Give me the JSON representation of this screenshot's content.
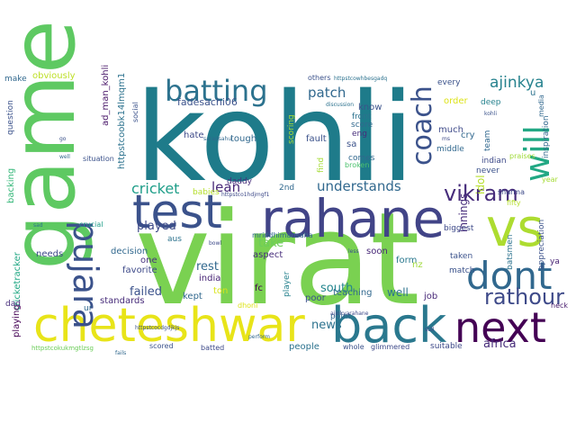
{
  "words": [
    {
      "text": "kohli",
      "color": "#1e7b8a"
    },
    {
      "text": "virat",
      "color": "#7ad151"
    },
    {
      "text": "game",
      "color": "#5ec962"
    },
    {
      "text": "rahane",
      "color": "#414487"
    },
    {
      "text": "test",
      "color": "#3b528b"
    },
    {
      "text": "vs",
      "color": "#addc30"
    },
    {
      "text": "cheteshwar",
      "color": "#e8e419"
    },
    {
      "text": "back",
      "color": "#2a788e"
    },
    {
      "text": "next",
      "color": "#440154"
    },
    {
      "text": "pujara",
      "color": "#3b528b"
    },
    {
      "text": "dont",
      "color": "#31688e"
    },
    {
      "text": "batting",
      "color": "#2c728e"
    },
    {
      "text": "coach",
      "color": "#3b528b"
    },
    {
      "text": "will",
      "color": "#22a884"
    },
    {
      "text": "rathour",
      "color": "#3e4a89"
    },
    {
      "text": "vikram",
      "color": "#472d7b"
    },
    {
      "text": "patch",
      "color": "#31688e"
    },
    {
      "text": "ajinkya",
      "color": "#26828e"
    },
    {
      "text": "understands",
      "color": "#31688e"
    },
    {
      "text": "cricket",
      "color": "#1f9e89"
    },
    {
      "text": "lean",
      "color": "#482878"
    },
    {
      "text": "failed",
      "color": "#3b528b"
    },
    {
      "text": "news",
      "color": "#2c728e"
    },
    {
      "text": "south",
      "color": "#24868e"
    },
    {
      "text": "africa",
      "color": "#472c7a"
    },
    {
      "text": "played",
      "color": "#3e4a89"
    },
    {
      "text": "take",
      "color": "#6ccd5a"
    },
    {
      "text": "rest",
      "color": "#31688e"
    },
    {
      "text": "well",
      "color": "#2c728e"
    },
    {
      "text": "innings",
      "color": "#472d7b"
    },
    {
      "text": "idol",
      "color": "#b5de2b"
    },
    {
      "text": "ad_man_kohli",
      "color": "#481668"
    },
    {
      "text": "httpstcoobk14lmqm1",
      "color": "#2c728e"
    },
    {
      "text": "fadesachi06",
      "color": "#3b528b"
    },
    {
      "text": "cricketracker",
      "color": "#22a884"
    },
    {
      "text": "backing",
      "color": "#35b779"
    },
    {
      "text": "obviously",
      "color": "#bddf26"
    },
    {
      "text": "make",
      "color": "#31688e"
    },
    {
      "text": "question",
      "color": "#3b528b"
    },
    {
      "text": "needs",
      "color": "#3e4a89"
    },
    {
      "text": "playing",
      "color": "#440154"
    },
    {
      "text": "dad",
      "color": "#472d7b"
    },
    {
      "text": "one",
      "color": "#46327e"
    },
    {
      "text": "favorite",
      "color": "#3e4a89"
    },
    {
      "text": "decision",
      "color": "#31688e"
    },
    {
      "text": "standards",
      "color": "#472c7a"
    },
    {
      "text": "kept",
      "color": "#31688e"
    },
    {
      "text": "india",
      "color": "#482576"
    },
    {
      "text": "ton",
      "color": "#d8e219"
    },
    {
      "text": "fc",
      "color": "#440154"
    },
    {
      "text": "player",
      "color": "#26828e"
    },
    {
      "text": "poor",
      "color": "#3b528b"
    },
    {
      "text": "teaching",
      "color": "#31688e"
    },
    {
      "text": "job",
      "color": "#482878"
    },
    {
      "text": "taken",
      "color": "#3b528b"
    },
    {
      "text": "match",
      "color": "#3b528b"
    },
    {
      "text": "batsmen",
      "color": "#2c728e"
    },
    {
      "text": "appreciation",
      "color": "#3b528b"
    },
    {
      "text": "neck",
      "color": "#481a6c"
    },
    {
      "text": "ya",
      "color": "#482475"
    },
    {
      "text": "soon",
      "color": "#482878"
    },
    {
      "text": "form",
      "color": "#2a788e"
    },
    {
      "text": "nz",
      "color": "#9fda3a"
    },
    {
      "text": "point",
      "color": "#31688e"
    },
    {
      "text": "people",
      "color": "#2c728e"
    },
    {
      "text": "suitable",
      "color": "#3e4a89"
    },
    {
      "text": "hate",
      "color": "#3e4a89"
    },
    {
      "text": "tough",
      "color": "#31688e"
    },
    {
      "text": "daddy",
      "color": "#472d7b"
    },
    {
      "text": "2nd",
      "color": "#31688e"
    },
    {
      "text": "fault",
      "color": "#3b528b"
    },
    {
      "text": "scoring",
      "color": "#a5db36"
    },
    {
      "text": "know",
      "color": "#3b528b"
    },
    {
      "text": "front",
      "color": "#2c728e"
    },
    {
      "text": "score",
      "color": "#31688e"
    },
    {
      "text": "eng",
      "color": "#472d7b"
    },
    {
      "text": "sa",
      "color": "#3b528b"
    },
    {
      "text": "much",
      "color": "#3e4a89"
    },
    {
      "text": "cry",
      "color": "#31688e"
    },
    {
      "text": "team",
      "color": "#31688e"
    },
    {
      "text": "order",
      "color": "#dde318"
    },
    {
      "text": "deep",
      "color": "#26828e"
    },
    {
      "text": "every",
      "color": "#3b528b"
    },
    {
      "text": "middle",
      "color": "#31688e"
    },
    {
      "text": "indian",
      "color": "#3e4a89"
    },
    {
      "text": "never",
      "color": "#3b528b"
    },
    {
      "text": "praises",
      "color": "#a0da39"
    },
    {
      "text": "inspiration",
      "color": "#31688e"
    },
    {
      "text": "biggest",
      "color": "#3e4a89"
    },
    {
      "text": "comes",
      "color": "#31688e"
    },
    {
      "text": "broken",
      "color": "#4ac16d"
    },
    {
      "text": "find",
      "color": "#a5db36"
    },
    {
      "text": "babies",
      "color": "#b5de2b"
    },
    {
      "text": "aus",
      "color": "#2c728e"
    },
    {
      "text": "aspect",
      "color": "#472d7b"
    },
    {
      "text": "mriddhimansaha",
      "color": "#31688e"
    },
    {
      "text": "situation",
      "color": "#3b528b"
    },
    {
      "text": "social",
      "color": "#3b528b"
    },
    {
      "text": "media",
      "color": "#31688e"
    },
    {
      "text": "sharma",
      "color": "#3e4a89"
    },
    {
      "text": "fifty",
      "color": "#b5de2b"
    },
    {
      "text": "year",
      "color": "#a5db36"
    },
    {
      "text": "others",
      "color": "#3b528b"
    },
    {
      "text": "whole",
      "color": "#3b528b"
    },
    {
      "text": "scored",
      "color": "#3b528b"
    },
    {
      "text": "batted",
      "color": "#3e4a89"
    },
    {
      "text": "glimmered",
      "color": "#3e4a89"
    },
    {
      "text": "ur",
      "color": "#31688e"
    },
    {
      "text": "crucial",
      "color": "#1f9e89"
    },
    {
      "text": "dhoni",
      "color": "#dde318"
    },
    {
      "text": "u",
      "color": "#2c728e"
    },
    {
      "text": "httpstcokukmgtlzsg",
      "color": "#6ccd5a"
    },
    {
      "text": "httpstcowhbesgadq",
      "color": "#2c728e"
    },
    {
      "text": "httpstco1hdjmgf1",
      "color": "#3e4a89"
    },
    {
      "text": "httpstcocdgdjkjs",
      "color": "#3b528b"
    },
    {
      "text": "discussion",
      "color": "#2c728e"
    },
    {
      "text": "perform",
      "color": "#31688e"
    },
    {
      "text": "bowl",
      "color": "#3e4a89"
    },
    {
      "text": "kohli",
      "color": "#3b528b"
    },
    {
      "text": "saradsahu",
      "color": "#31688e"
    },
    {
      "text": "still",
      "color": "#3e4a89"
    },
    {
      "text": "less",
      "color": "#3b528b"
    },
    {
      "text": "go",
      "color": "#3b528b"
    },
    {
      "text": "fails",
      "color": "#31688e"
    },
    {
      "text": "ms",
      "color": "#3e4a89"
    },
    {
      "text": "sad",
      "color": "#2c728e"
    },
    {
      "text": "well",
      "color": "#31688e"
    },
    {
      "text": "ajinkyarahane",
      "color": "#3e4a89"
    }
  ]
}
